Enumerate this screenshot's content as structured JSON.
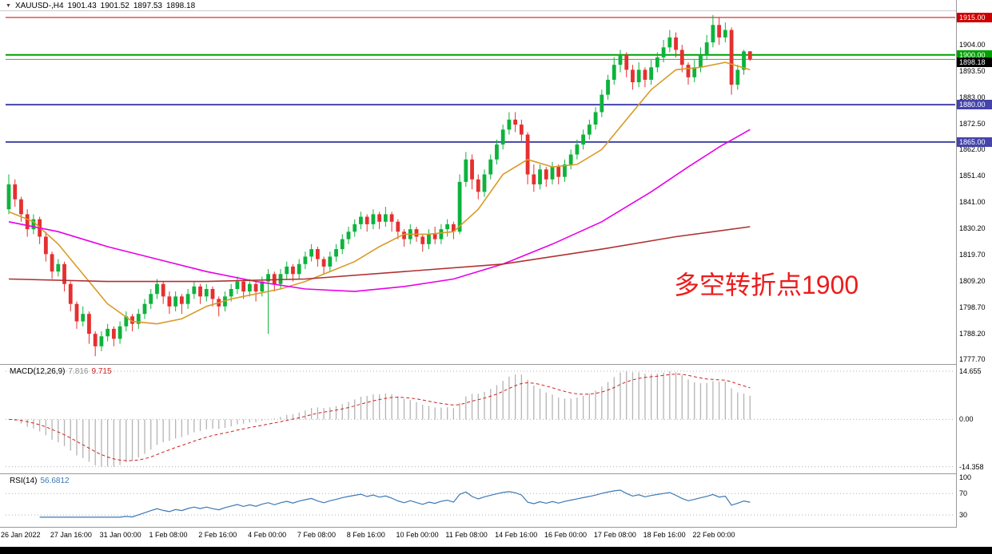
{
  "chart_data": {
    "type": "candlestick",
    "symbol": "XAUUSD-",
    "timeframe": "H4",
    "header": {
      "symbol_period": "XAUUSD-,H4",
      "open": "1901.43",
      "high": "1901.52",
      "low": "1897.53",
      "close": "1898.18"
    },
    "colors": {
      "up": "#0db33c",
      "down": "#e53030",
      "macd_hist": "#b4b4b4",
      "macd_signal": "#cc2222",
      "rsi": "#3c78b4",
      "level_red": "#cc0000",
      "level_green": "#00a000",
      "level_navy": "#4444aa"
    },
    "price_axis": {
      "ticks": [
        "1904.00",
        "1893.50",
        "1883.00",
        "1872.50",
        "1862.00",
        "1851.40",
        "1841.00",
        "1830.20",
        "1819.70",
        "1809.20",
        "1798.70",
        "1788.20",
        "1777.70"
      ]
    },
    "h_lines": [
      {
        "price": 1915.0,
        "label": "1915.00",
        "color": "#cc0000",
        "width": 1,
        "label_bg": "#cc0000",
        "label_dy": 0
      },
      {
        "price": 1900.0,
        "label": "1900.00",
        "color": "#00a000",
        "width": 2,
        "label_bg": "#00a000",
        "label_dy": 0
      },
      {
        "price": 1898.18,
        "label": "1898.18",
        "color": "#2fb52f",
        "width": 1,
        "label_bg": "#000000",
        "label_dy": 4
      },
      {
        "price": 1880.0,
        "label": "1880.00",
        "color": "#4444aa",
        "width": 2,
        "label_bg": "#4444aa",
        "label_dy": 0
      },
      {
        "price": 1865.0,
        "label": "1865.00",
        "color": "#4444aa",
        "width": 2,
        "label_bg": "#4444aa",
        "label_dy": 0
      }
    ],
    "candles": [
      [
        1838,
        1852,
        1836,
        1848
      ],
      [
        1848,
        1850,
        1839,
        1842
      ],
      [
        1842,
        1843,
        1833,
        1836
      ],
      [
        1836,
        1838,
        1827,
        1830
      ],
      [
        1830,
        1836,
        1828,
        1834
      ],
      [
        1834,
        1835,
        1824,
        1827
      ],
      [
        1827,
        1829,
        1817,
        1820
      ],
      [
        1820,
        1821,
        1810,
        1813
      ],
      [
        1813,
        1818,
        1811,
        1816
      ],
      [
        1816,
        1817,
        1805,
        1808
      ],
      [
        1808,
        1809,
        1797,
        1800
      ],
      [
        1800,
        1801,
        1790,
        1793
      ],
      [
        1793,
        1799,
        1791,
        1796
      ],
      [
        1796,
        1797,
        1784,
        1788
      ],
      [
        1788,
        1789,
        1779,
        1783
      ],
      [
        1783,
        1789,
        1781,
        1787
      ],
      [
        1787,
        1792,
        1785,
        1790
      ],
      [
        1790,
        1791,
        1783,
        1786
      ],
      [
        1786,
        1793,
        1784,
        1791
      ],
      [
        1791,
        1797,
        1789,
        1795
      ],
      [
        1795,
        1796,
        1789,
        1792
      ],
      [
        1792,
        1798,
        1790,
        1796
      ],
      [
        1796,
        1802,
        1794,
        1800
      ],
      [
        1800,
        1806,
        1798,
        1804
      ],
      [
        1804,
        1810,
        1802,
        1808
      ],
      [
        1808,
        1809,
        1800,
        1803
      ],
      [
        1803,
        1805,
        1796,
        1799
      ],
      [
        1799,
        1805,
        1797,
        1803
      ],
      [
        1803,
        1804,
        1796,
        1800
      ],
      [
        1800,
        1806,
        1798,
        1804
      ],
      [
        1804,
        1809,
        1802,
        1807
      ],
      [
        1807,
        1808,
        1800,
        1803
      ],
      [
        1803,
        1808,
        1801,
        1806
      ],
      [
        1806,
        1807,
        1799,
        1802
      ],
      [
        1802,
        1803,
        1795,
        1799
      ],
      [
        1799,
        1805,
        1797,
        1803
      ],
      [
        1803,
        1808,
        1801,
        1806
      ],
      [
        1806,
        1811,
        1804,
        1809
      ],
      [
        1809,
        1810,
        1802,
        1805
      ],
      [
        1805,
        1810,
        1803,
        1808
      ],
      [
        1808,
        1809,
        1801,
        1805
      ],
      [
        1805,
        1811,
        1803,
        1809
      ],
      [
        1809,
        1814,
        1788,
        1812
      ],
      [
        1812,
        1813,
        1805,
        1808
      ],
      [
        1808,
        1814,
        1806,
        1812
      ],
      [
        1812,
        1817,
        1810,
        1815
      ],
      [
        1815,
        1816,
        1809,
        1812
      ],
      [
        1812,
        1818,
        1810,
        1816
      ],
      [
        1816,
        1821,
        1814,
        1819
      ],
      [
        1819,
        1824,
        1817,
        1822
      ],
      [
        1822,
        1823,
        1815,
        1818
      ],
      [
        1818,
        1819,
        1812,
        1815
      ],
      [
        1815,
        1821,
        1813,
        1819
      ],
      [
        1819,
        1824,
        1817,
        1822
      ],
      [
        1822,
        1828,
        1820,
        1826
      ],
      [
        1826,
        1831,
        1824,
        1829
      ],
      [
        1829,
        1834,
        1827,
        1832
      ],
      [
        1832,
        1837,
        1830,
        1835
      ],
      [
        1835,
        1836,
        1829,
        1832
      ],
      [
        1832,
        1838,
        1830,
        1836
      ],
      [
        1836,
        1837,
        1830,
        1833
      ],
      [
        1833,
        1839,
        1831,
        1836
      ],
      [
        1836,
        1837,
        1829,
        1833
      ],
      [
        1833,
        1834,
        1826,
        1829
      ],
      [
        1829,
        1830,
        1823,
        1826
      ],
      [
        1826,
        1832,
        1824,
        1830
      ],
      [
        1830,
        1831,
        1825,
        1827
      ],
      [
        1827,
        1828,
        1821,
        1824
      ],
      [
        1824,
        1830,
        1822,
        1828
      ],
      [
        1828,
        1831,
        1824,
        1826
      ],
      [
        1826,
        1832,
        1824,
        1830
      ],
      [
        1830,
        1834,
        1827,
        1832
      ],
      [
        1832,
        1833,
        1826,
        1829
      ],
      [
        1829,
        1852,
        1828,
        1849
      ],
      [
        1849,
        1861,
        1847,
        1858
      ],
      [
        1858,
        1860,
        1846,
        1850
      ],
      [
        1850,
        1852,
        1842,
        1845
      ],
      [
        1845,
        1854,
        1843,
        1852
      ],
      [
        1852,
        1860,
        1850,
        1858
      ],
      [
        1858,
        1866,
        1856,
        1864
      ],
      [
        1864,
        1872,
        1862,
        1870
      ],
      [
        1870,
        1877,
        1868,
        1874
      ],
      [
        1874,
        1877,
        1869,
        1872
      ],
      [
        1872,
        1874,
        1865,
        1868
      ],
      [
        1868,
        1869,
        1848,
        1852
      ],
      [
        1852,
        1856,
        1845,
        1848
      ],
      [
        1848,
        1856,
        1846,
        1854
      ],
      [
        1854,
        1855,
        1847,
        1850
      ],
      [
        1850,
        1857,
        1848,
        1855
      ],
      [
        1855,
        1856,
        1848,
        1851
      ],
      [
        1851,
        1858,
        1849,
        1856
      ],
      [
        1856,
        1862,
        1854,
        1860
      ],
      [
        1860,
        1866,
        1858,
        1864
      ],
      [
        1864,
        1870,
        1862,
        1868
      ],
      [
        1868,
        1874,
        1866,
        1872
      ],
      [
        1872,
        1879,
        1870,
        1877
      ],
      [
        1877,
        1886,
        1875,
        1884
      ],
      [
        1884,
        1892,
        1882,
        1890
      ],
      [
        1890,
        1899,
        1888,
        1896
      ],
      [
        1896,
        1902,
        1893,
        1900
      ],
      [
        1900,
        1901,
        1891,
        1894
      ],
      [
        1894,
        1896,
        1886,
        1889
      ],
      [
        1889,
        1897,
        1887,
        1894
      ],
      [
        1894,
        1895,
        1887,
        1890
      ],
      [
        1890,
        1898,
        1888,
        1895
      ],
      [
        1895,
        1901,
        1893,
        1899
      ],
      [
        1899,
        1906,
        1897,
        1903
      ],
      [
        1903,
        1910,
        1901,
        1907
      ],
      [
        1907,
        1909,
        1899,
        1902
      ],
      [
        1902,
        1904,
        1893,
        1896
      ],
      [
        1896,
        1897,
        1888,
        1891
      ],
      [
        1891,
        1898,
        1889,
        1895
      ],
      [
        1895,
        1903,
        1893,
        1900
      ],
      [
        1900,
        1908,
        1898,
        1905
      ],
      [
        1905,
        1916,
        1903,
        1912
      ],
      [
        1912,
        1915,
        1904,
        1907
      ],
      [
        1907,
        1913,
        1905,
        1910
      ],
      [
        1910,
        1911,
        1884,
        1888
      ],
      [
        1888,
        1896,
        1886,
        1894
      ],
      [
        1894,
        1902,
        1892,
        1901.4
      ],
      [
        1901.43,
        1901.52,
        1897.53,
        1898.18
      ]
    ],
    "ma_lines": [
      {
        "name": "ma-fast-orange",
        "color": "#d99a26",
        "points": [
          [
            0,
            1837
          ],
          [
            4,
            1833
          ],
          [
            8,
            1824
          ],
          [
            12,
            1812
          ],
          [
            16,
            1800
          ],
          [
            20,
            1793
          ],
          [
            24,
            1792
          ],
          [
            28,
            1794
          ],
          [
            32,
            1799
          ],
          [
            36,
            1802
          ],
          [
            40,
            1804
          ],
          [
            44,
            1806
          ],
          [
            48,
            1809
          ],
          [
            52,
            1813
          ],
          [
            56,
            1817
          ],
          [
            60,
            1823
          ],
          [
            64,
            1828
          ],
          [
            68,
            1828
          ],
          [
            72,
            1829
          ],
          [
            76,
            1838
          ],
          [
            80,
            1852
          ],
          [
            84,
            1858
          ],
          [
            88,
            1855
          ],
          [
            92,
            1856
          ],
          [
            96,
            1862
          ],
          [
            100,
            1874
          ],
          [
            104,
            1886
          ],
          [
            108,
            1894
          ],
          [
            112,
            1895
          ],
          [
            116,
            1897
          ],
          [
            120,
            1894
          ]
        ]
      },
      {
        "name": "ma-mid-magenta",
        "color": "#e800e8",
        "points": [
          [
            0,
            1833
          ],
          [
            8,
            1829
          ],
          [
            16,
            1823
          ],
          [
            24,
            1818
          ],
          [
            32,
            1813
          ],
          [
            40,
            1809
          ],
          [
            48,
            1806
          ],
          [
            56,
            1805
          ],
          [
            64,
            1807
          ],
          [
            72,
            1810
          ],
          [
            80,
            1816
          ],
          [
            88,
            1824
          ],
          [
            96,
            1833
          ],
          [
            104,
            1845
          ],
          [
            110,
            1855
          ],
          [
            115,
            1863
          ],
          [
            120,
            1870
          ]
        ]
      },
      {
        "name": "ma-slow-darkred",
        "color": "#b03030",
        "points": [
          [
            0,
            1810
          ],
          [
            16,
            1809
          ],
          [
            32,
            1809
          ],
          [
            48,
            1810
          ],
          [
            64,
            1813
          ],
          [
            80,
            1816
          ],
          [
            96,
            1822
          ],
          [
            108,
            1827
          ],
          [
            120,
            1831
          ]
        ]
      }
    ],
    "time_labels": [
      {
        "index": 0,
        "text": "26 Jan 2022"
      },
      {
        "index": 8,
        "text": "27 Jan 16:00"
      },
      {
        "index": 16,
        "text": "31 Jan 00:00"
      },
      {
        "index": 24,
        "text": "1 Feb 08:00"
      },
      {
        "index": 32,
        "text": "2 Feb 16:00"
      },
      {
        "index": 40,
        "text": "4 Feb 00:00"
      },
      {
        "index": 48,
        "text": "7 Feb 08:00"
      },
      {
        "index": 56,
        "text": "8 Feb 16:00"
      },
      {
        "index": 64,
        "text": "10 Feb 00:00"
      },
      {
        "index": 72,
        "text": "11 Feb 08:00"
      },
      {
        "index": 80,
        "text": "14 Feb 16:00"
      },
      {
        "index": 88,
        "text": "16 Feb 00:00"
      },
      {
        "index": 96,
        "text": "17 Feb 08:00"
      },
      {
        "index": 104,
        "text": "18 Feb 16:00"
      },
      {
        "index": 112,
        "text": "22 Feb 00:00"
      }
    ],
    "macd": {
      "label": "MACD(12,26,9)",
      "value_main": "7.816",
      "value_signal": "9.715",
      "fast": 12,
      "slow": 26,
      "signal_period": 9,
      "scale_ticks": [
        "14.655",
        "0.00",
        "-14.358"
      ]
    },
    "rsi": {
      "label": "RSI(14)",
      "value_text": "56.6812",
      "period": 14,
      "levels": [
        "100",
        "70",
        "30"
      ],
      "levels_dotted": [
        70,
        30
      ]
    },
    "annotation": {
      "text": "多空转折点1900",
      "color": "#ec1c1c"
    }
  }
}
